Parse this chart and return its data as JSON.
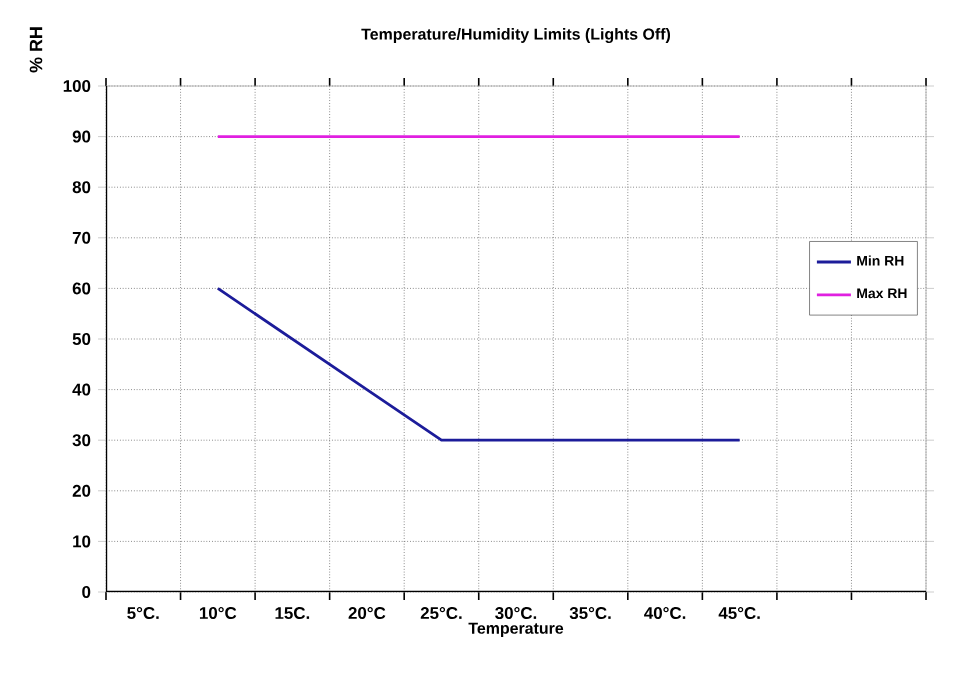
{
  "chart_data": {
    "type": "line",
    "title": "Temperature/Humidity Limits (Lights Off)",
    "xlabel": "Temperature",
    "ylabel": "% RH",
    "categories": [
      "5°C.",
      "10°C",
      "15C.",
      "20°C",
      "25°C.",
      "30°C.",
      "35°C.",
      "40°C.",
      "45°C.",
      null,
      null
    ],
    "series": [
      {
        "name": "Min RH",
        "color": "#1c1c9a",
        "values": [
          null,
          60,
          50,
          40,
          30,
          30,
          30,
          30,
          30,
          null,
          null
        ]
      },
      {
        "name": "Max RH",
        "color": "#e020e0",
        "values": [
          null,
          90,
          90,
          90,
          90,
          90,
          90,
          90,
          90,
          null,
          null
        ]
      }
    ],
    "ylim": [
      0,
      100
    ],
    "yticks": [
      0,
      10,
      20,
      30,
      40,
      50,
      60,
      70,
      80,
      90,
      100
    ],
    "grid": true,
    "legend": "right",
    "marker": "none",
    "line_style": "solid"
  }
}
